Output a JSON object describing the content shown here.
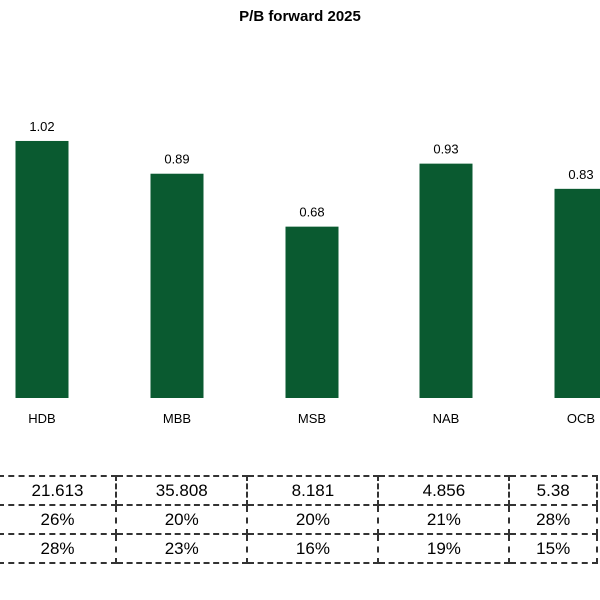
{
  "chart_data": {
    "type": "bar",
    "title": "P/B forward 2025",
    "categories": [
      "HDB",
      "MBB",
      "MSB",
      "NAB",
      "OCB"
    ],
    "values": [
      1.02,
      0.89,
      0.68,
      0.93,
      0.83
    ],
    "value_labels": [
      "1.02",
      "0.89",
      "0.68",
      "0.93",
      "0.83"
    ],
    "ylim": [
      0,
      1.1
    ],
    "grid": false,
    "bar_color": "#0a5a30"
  },
  "table": {
    "rows": [
      [
        "21.613",
        "35.808",
        "8.181",
        "4.856",
        "5.38"
      ],
      [
        "26%",
        "20%",
        "20%",
        "21%",
        "28%"
      ],
      [
        "28%",
        "23%",
        "16%",
        "19%",
        "15%"
      ]
    ]
  }
}
